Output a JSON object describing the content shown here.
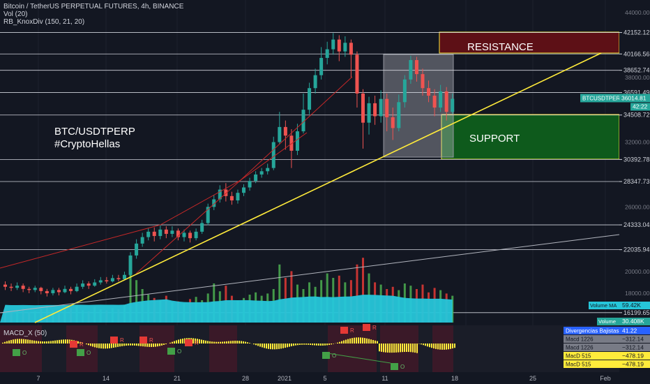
{
  "legend": {
    "symbol_line": "Bitcoin / TetherUS PERPETUAL FUTURES, 4h, BINANCE",
    "vol_line": "Vol (20)",
    "div_line": "RB_KnoxDiv (150, 21, 20)"
  },
  "annotations": {
    "title_line1": "BTC/USDTPERP",
    "title_line2": "#CryptoHellas",
    "resistance": "RESISTANCE",
    "support": "SUPPORT"
  },
  "colors": {
    "background": "#131722",
    "up": "#26a69a",
    "down": "#ef5350",
    "trendline": "#ffeb3b",
    "volume_ma": "#26c6da",
    "resistance_fill": "#5d1016",
    "support_fill": "#0e5a1c",
    "macd": "#ffeb3b"
  },
  "chart_data": {
    "type": "candlestick",
    "x_tick_labels": [
      "7",
      "14",
      "21",
      "28",
      "2021",
      "5",
      "11",
      "18",
      "25",
      "Feb"
    ],
    "y_axis_ticks": [
      "44000.00",
      "38000.00",
      "32000.00",
      "26000.00",
      "20000.00",
      "18000.00"
    ],
    "price_levels": [
      "42152.12",
      "40166.56",
      "38652.74",
      "36591.49",
      "34508.72",
      "30392.78",
      "28347.73",
      "24333.04",
      "22035.94",
      "16199.65"
    ],
    "last_price": {
      "symbol": "BTCUSDTPERP",
      "value": "36014.81",
      "countdown": "42:22"
    },
    "volume_panel": {
      "ma_label": "Volume MA",
      "ma_value": "59.42K",
      "vol_label": "Volume",
      "vol_value": "30.408K"
    },
    "macd_panel": {
      "title": "MACD_X (50)",
      "readouts": [
        {
          "label": "Divergencias Bajistas",
          "value": "41.22"
        },
        {
          "label": "Macd 1226",
          "value": "−312.14"
        },
        {
          "label": "Macd 1226",
          "value": "−312.14"
        },
        {
          "label": "MacD 515",
          "value": "−478.19"
        },
        {
          "label": "MacD 515",
          "value": "−478.19"
        }
      ],
      "signal_marks": [
        "R",
        "O"
      ]
    },
    "candles": [
      [
        18800,
        18600,
        19100,
        18300
      ],
      [
        18600,
        18500,
        18900,
        18200
      ],
      [
        18500,
        18700,
        19000,
        18300
      ],
      [
        18700,
        18400,
        18900,
        18100
      ],
      [
        18400,
        18300,
        18600,
        18000
      ],
      [
        18300,
        18500,
        18700,
        18100
      ],
      [
        18500,
        18200,
        18600,
        17900
      ],
      [
        18200,
        18000,
        18400,
        17700
      ],
      [
        18000,
        18300,
        18500,
        17800
      ],
      [
        18300,
        18100,
        18500,
        17800
      ],
      [
        18100,
        18400,
        18700,
        18000
      ],
      [
        18400,
        18200,
        18600,
        17900
      ],
      [
        18200,
        18600,
        18900,
        18100
      ],
      [
        18600,
        18900,
        19200,
        18400
      ],
      [
        18900,
        18700,
        19100,
        18400
      ],
      [
        18700,
        19000,
        19300,
        18600
      ],
      [
        19000,
        19200,
        19500,
        18800
      ],
      [
        19200,
        19100,
        19500,
        18900
      ],
      [
        19100,
        19400,
        19700,
        19000
      ],
      [
        19400,
        19300,
        19700,
        19100
      ],
      [
        19300,
        19700,
        20000,
        19200
      ],
      [
        19700,
        21500,
        21800,
        19500
      ],
      [
        21500,
        22600,
        23000,
        21200
      ],
      [
        22600,
        23200,
        23600,
        22300
      ],
      [
        23200,
        23700,
        24000,
        22900
      ],
      [
        23700,
        23300,
        24100,
        22800
      ],
      [
        23300,
        23900,
        24300,
        23000
      ],
      [
        23900,
        23500,
        24200,
        23100
      ],
      [
        23500,
        23800,
        24200,
        23200
      ],
      [
        23800,
        23200,
        24000,
        22900
      ],
      [
        23200,
        23600,
        23900,
        22800
      ],
      [
        23600,
        23100,
        23800,
        22700
      ],
      [
        23100,
        23700,
        24000,
        22900
      ],
      [
        23700,
        24500,
        24800,
        23500
      ],
      [
        24500,
        26000,
        26300,
        24300
      ],
      [
        26000,
        26700,
        27100,
        25700
      ],
      [
        26700,
        27600,
        28000,
        26400
      ],
      [
        27600,
        27000,
        28200,
        26500
      ],
      [
        27000,
        26600,
        27400,
        26200
      ],
      [
        26600,
        27300,
        27600,
        26300
      ],
      [
        27300,
        27800,
        28100,
        27000
      ],
      [
        27800,
        28400,
        28700,
        27500
      ],
      [
        28400,
        29000,
        29300,
        28200
      ],
      [
        29000,
        29300,
        29600,
        28700
      ],
      [
        29300,
        29600,
        30000,
        29000
      ],
      [
        29600,
        32000,
        32500,
        29400
      ],
      [
        32000,
        33400,
        34800,
        31800
      ],
      [
        33400,
        32600,
        34000,
        31300
      ],
      [
        32600,
        31200,
        33200,
        29600
      ],
      [
        31200,
        33000,
        33700,
        30800
      ],
      [
        33000,
        35000,
        36500,
        32800
      ],
      [
        35000,
        37000,
        37500,
        34600
      ],
      [
        37000,
        38200,
        38800,
        36500
      ],
      [
        38200,
        39800,
        40800,
        37800
      ],
      [
        39800,
        40600,
        41300,
        39200
      ],
      [
        40600,
        41500,
        42100,
        40100
      ],
      [
        41500,
        40400,
        41900,
        39500
      ],
      [
        40400,
        41200,
        41800,
        39900
      ],
      [
        41200,
        40100,
        41500,
        38000
      ],
      [
        40100,
        36500,
        40400,
        35200
      ],
      [
        36500,
        33800,
        36900,
        31400
      ],
      [
        33800,
        35600,
        36200,
        32700
      ],
      [
        35600,
        34400,
        36300,
        33600
      ],
      [
        34400,
        36000,
        36800,
        33800
      ],
      [
        36000,
        34300,
        36500,
        33000
      ],
      [
        34300,
        33300,
        35200,
        32200
      ],
      [
        33300,
        35700,
        36400,
        33000
      ],
      [
        35700,
        37800,
        38200,
        35200
      ],
      [
        37800,
        39600,
        40000,
        37400
      ],
      [
        39600,
        38300,
        39900,
        37600
      ],
      [
        38300,
        37000,
        38800,
        36300
      ],
      [
        37000,
        36300,
        37700,
        35700
      ],
      [
        36300,
        35200,
        36900,
        34400
      ],
      [
        35200,
        36700,
        37300,
        34800
      ],
      [
        36700,
        34800,
        37100,
        34000
      ],
      [
        34800,
        36014,
        36500,
        34600
      ]
    ],
    "volumes": [
      12,
      10,
      11,
      13,
      9,
      10,
      12,
      14,
      11,
      10,
      12,
      13,
      15,
      11,
      10,
      14,
      12,
      11,
      13,
      12,
      16,
      48,
      38,
      30,
      25,
      22,
      20,
      24,
      18,
      19,
      17,
      21,
      23,
      20,
      26,
      35,
      28,
      33,
      24,
      20,
      22,
      25,
      27,
      24,
      26,
      30,
      52,
      40,
      46,
      34,
      30,
      36,
      32,
      38,
      44,
      40,
      42,
      36,
      38,
      52,
      58,
      44,
      36,
      34,
      30,
      32,
      29,
      35,
      33,
      30,
      34,
      27,
      31,
      29,
      26,
      24
    ]
  }
}
